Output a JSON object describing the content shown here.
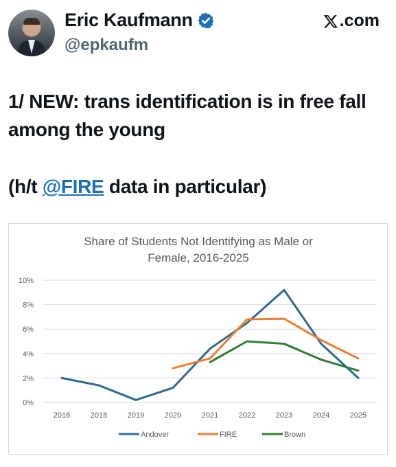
{
  "header": {
    "display_name": "Eric Kaufmann",
    "handle": "@epkaufm",
    "site_label": ".com",
    "verified_icon": "verified-badge-icon",
    "site_icon": "x-logo-icon"
  },
  "tweet": {
    "line1": "1/ NEW: trans identification is in free fall among the young",
    "line2_prefix": "(h/t ",
    "line2_mention": "@FIRE",
    "line2_suffix": " data in particular)"
  },
  "colors": {
    "Andover": "#2a6a93",
    "FIRE": "#ed7d31",
    "Brown": "#2e7d32",
    "mention": "#1d6fb8"
  },
  "chart_data": {
    "type": "line",
    "title": "Share of Students Not Identifying as Male or Female, 2016-2025",
    "title_lines": [
      "Share of Students Not Identifying as Male or",
      "Female, 2016-2025"
    ],
    "categories": [
      "2016",
      "2018",
      "2019",
      "2020",
      "2021",
      "2022",
      "2023",
      "2024",
      "2025"
    ],
    "yticks": [
      "0%",
      "2%",
      "4%",
      "6%",
      "8%",
      "10%"
    ],
    "ylim": [
      0,
      10
    ],
    "grid": true,
    "legend": "bottom",
    "series": [
      {
        "name": "Andover",
        "values": [
          2.0,
          1.4,
          0.2,
          1.2,
          4.4,
          6.5,
          9.2,
          4.8,
          2.0
        ]
      },
      {
        "name": "FIRE",
        "values": [
          null,
          null,
          null,
          2.8,
          3.6,
          6.8,
          6.85,
          5.1,
          3.6
        ]
      },
      {
        "name": "Brown",
        "values": [
          null,
          null,
          null,
          null,
          3.3,
          5.0,
          4.8,
          3.5,
          2.6
        ]
      }
    ]
  }
}
